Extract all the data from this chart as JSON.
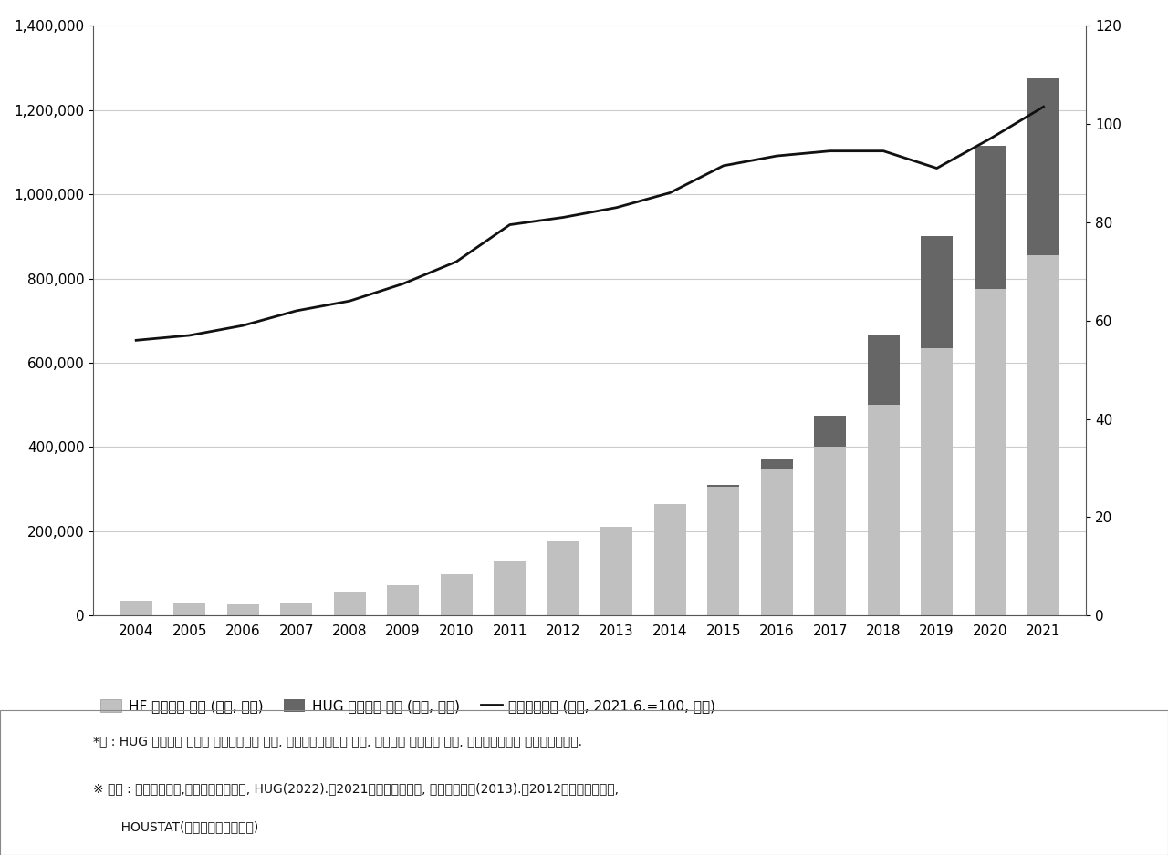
{
  "years": [
    2004,
    2005,
    2006,
    2007,
    2008,
    2009,
    2010,
    2011,
    2012,
    2013,
    2014,
    2015,
    2016,
    2017,
    2018,
    2019,
    2020,
    2021
  ],
  "hf": [
    35000,
    30000,
    27000,
    32000,
    55000,
    72000,
    98000,
    130000,
    175000,
    210000,
    265000,
    305000,
    350000,
    400000,
    500000,
    635000,
    775000,
    855000
  ],
  "hug": [
    0,
    0,
    0,
    0,
    0,
    0,
    0,
    0,
    0,
    0,
    0,
    5000,
    20000,
    75000,
    165000,
    265000,
    340000,
    420000
  ],
  "jeonse_index": [
    56.0,
    57.0,
    59.0,
    62.0,
    64.0,
    67.5,
    72.0,
    79.5,
    81.0,
    83.0,
    86.0,
    91.5,
    93.5,
    94.5,
    94.5,
    91.0,
    97.0,
    103.5
  ],
  "hf_color": "#c0c0c0",
  "hug_color": "#666666",
  "line_color": "#111111",
  "ylim_left": [
    0,
    1400000
  ],
  "ylim_right": [
    0,
    120
  ],
  "yticks_left": [
    0,
    200000,
    400000,
    600000,
    800000,
    1000000,
    1200000,
    1400000
  ],
  "yticks_right": [
    0,
    20,
    40,
    60,
    80,
    100,
    120
  ],
  "legend_hf": "HF 전세보증 잔액 (억원, 좌측)",
  "legend_hug": "HUG 전세보증 잔액 (억원, 좌측)",
  "legend_line": "전세가격지수 (종합, 2021.6.=100, 우측)",
  "note1": "*주 : HUG 전세보증 잔액은 주택임차자금 보증, 기금전세자금대출 보증, 오피스텔 전세자금 보증, 전세대출특약을 합산하였습니다.",
  "note2": "※ 출처 : 한국부동산원,「주택가격동향」, HUG(2022).『2021업무통계연보』, 대한주택보증(2013).『2012업무통계연보』,",
  "note3": "       HOUSTAT(주택금융통계시스템)",
  "background_color": "#ffffff",
  "bar_width": 0.6,
  "grid_color": "#cccccc",
  "spine_color": "#555555"
}
